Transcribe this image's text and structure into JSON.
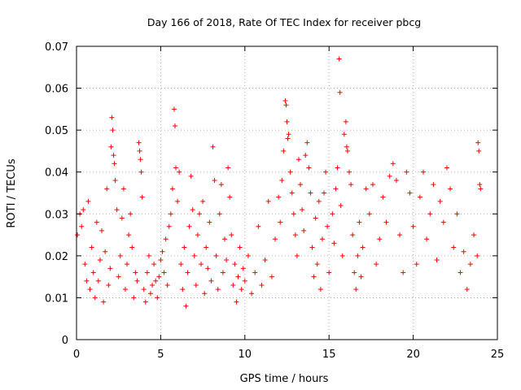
{
  "chart_data": {
    "type": "scatter",
    "title": "Day 166 of 2018, Rate Of TEC Index for receiver pbcg",
    "xlabel": "GPS time / hours",
    "ylabel": "ROTI / TECUs",
    "xlim": [
      0,
      25
    ],
    "ylim": [
      0,
      0.07
    ],
    "x_ticks": [
      0,
      5,
      10,
      15,
      20,
      25
    ],
    "x_tick_labels": [
      "0",
      "5",
      "10",
      "15",
      "20",
      "25"
    ],
    "y_ticks": [
      0,
      0.01,
      0.02,
      0.03,
      0.04,
      0.05,
      0.06,
      0.07
    ],
    "y_tick_labels": [
      "0",
      "0.01",
      "0.02",
      "0.03",
      "0.04",
      "0.05",
      "0.06",
      "0.07"
    ],
    "grid": true,
    "marker": "plus",
    "color": "#ff0000",
    "series": [
      {
        "name": "ROTI",
        "points": [
          [
            0.05,
            0.025
          ],
          [
            0.2,
            0.03
          ],
          [
            0.3,
            0.027
          ],
          [
            0.4,
            0.031
          ],
          [
            0.5,
            0.018
          ],
          [
            0.6,
            0.014
          ],
          [
            0.7,
            0.033
          ],
          [
            0.8,
            0.012
          ],
          [
            0.9,
            0.022
          ],
          [
            1.0,
            0.016
          ],
          [
            1.1,
            0.01
          ],
          [
            1.2,
            0.028
          ],
          [
            1.3,
            0.014
          ],
          [
            1.4,
            0.019
          ],
          [
            1.5,
            0.026
          ],
          [
            1.6,
            0.009
          ],
          [
            1.7,
            0.021
          ],
          [
            1.8,
            0.036
          ],
          [
            1.9,
            0.013
          ],
          [
            2.0,
            0.017
          ],
          [
            2.05,
            0.046
          ],
          [
            2.1,
            0.053
          ],
          [
            2.15,
            0.05
          ],
          [
            2.2,
            0.044
          ],
          [
            2.25,
            0.042
          ],
          [
            2.3,
            0.038
          ],
          [
            2.4,
            0.031
          ],
          [
            2.5,
            0.015
          ],
          [
            2.6,
            0.02
          ],
          [
            2.7,
            0.029
          ],
          [
            2.8,
            0.036
          ],
          [
            2.9,
            0.012
          ],
          [
            3.0,
            0.018
          ],
          [
            3.1,
            0.025
          ],
          [
            3.2,
            0.03
          ],
          [
            3.3,
            0.022
          ],
          [
            3.4,
            0.01
          ],
          [
            3.5,
            0.016
          ],
          [
            3.6,
            0.014
          ],
          [
            3.7,
            0.047
          ],
          [
            3.75,
            0.045
          ],
          [
            3.8,
            0.043
          ],
          [
            3.85,
            0.04
          ],
          [
            3.9,
            0.034
          ],
          [
            4.0,
            0.012
          ],
          [
            4.1,
            0.009
          ],
          [
            4.2,
            0.016
          ],
          [
            4.3,
            0.02
          ],
          [
            4.4,
            0.011
          ],
          [
            4.5,
            0.013
          ],
          [
            4.6,
            0.018
          ],
          [
            4.7,
            0.014
          ],
          [
            4.8,
            0.01
          ],
          [
            4.9,
            0.015
          ],
          [
            5.0,
            0.019
          ],
          [
            5.1,
            0.021
          ],
          [
            5.2,
            0.016
          ],
          [
            5.3,
            0.024
          ],
          [
            5.4,
            0.013
          ],
          [
            5.5,
            0.027
          ],
          [
            5.6,
            0.03
          ],
          [
            5.7,
            0.036
          ],
          [
            5.8,
            0.055
          ],
          [
            5.85,
            0.051
          ],
          [
            5.9,
            0.041
          ],
          [
            6.0,
            0.033
          ],
          [
            6.1,
            0.04
          ],
          [
            6.2,
            0.018
          ],
          [
            6.3,
            0.012
          ],
          [
            6.4,
            0.022
          ],
          [
            6.5,
            0.008
          ],
          [
            6.6,
            0.016
          ],
          [
            6.7,
            0.027
          ],
          [
            6.8,
            0.039
          ],
          [
            6.9,
            0.031
          ],
          [
            7.0,
            0.02
          ],
          [
            7.1,
            0.013
          ],
          [
            7.2,
            0.025
          ],
          [
            7.3,
            0.03
          ],
          [
            7.4,
            0.018
          ],
          [
            7.5,
            0.033
          ],
          [
            7.6,
            0.011
          ],
          [
            7.7,
            0.022
          ],
          [
            7.8,
            0.017
          ],
          [
            7.9,
            0.028
          ],
          [
            8.0,
            0.014
          ],
          [
            8.1,
            0.046
          ],
          [
            8.2,
            0.038
          ],
          [
            8.3,
            0.02
          ],
          [
            8.4,
            0.012
          ],
          [
            8.5,
            0.03
          ],
          [
            8.6,
            0.037
          ],
          [
            8.7,
            0.016
          ],
          [
            8.8,
            0.024
          ],
          [
            8.9,
            0.019
          ],
          [
            9.0,
            0.041
          ],
          [
            9.1,
            0.034
          ],
          [
            9.2,
            0.025
          ],
          [
            9.3,
            0.013
          ],
          [
            9.4,
            0.018
          ],
          [
            9.5,
            0.009
          ],
          [
            9.6,
            0.015
          ],
          [
            9.7,
            0.022
          ],
          [
            9.8,
            0.012
          ],
          [
            9.9,
            0.017
          ],
          [
            10.0,
            0.014
          ],
          [
            10.2,
            0.02
          ],
          [
            10.4,
            0.011
          ],
          [
            10.6,
            0.016
          ],
          [
            10.8,
            0.027
          ],
          [
            11.0,
            0.013
          ],
          [
            11.2,
            0.019
          ],
          [
            11.4,
            0.033
          ],
          [
            11.6,
            0.015
          ],
          [
            11.8,
            0.024
          ],
          [
            12.0,
            0.034
          ],
          [
            12.1,
            0.028
          ],
          [
            12.2,
            0.038
          ],
          [
            12.3,
            0.045
          ],
          [
            12.4,
            0.057
          ],
          [
            12.45,
            0.056
          ],
          [
            12.5,
            0.052
          ],
          [
            12.55,
            0.048
          ],
          [
            12.6,
            0.049
          ],
          [
            12.7,
            0.04
          ],
          [
            12.8,
            0.035
          ],
          [
            12.9,
            0.03
          ],
          [
            13.0,
            0.025
          ],
          [
            13.1,
            0.02
          ],
          [
            13.2,
            0.043
          ],
          [
            13.3,
            0.037
          ],
          [
            13.4,
            0.031
          ],
          [
            13.5,
            0.026
          ],
          [
            13.6,
            0.044
          ],
          [
            13.7,
            0.047
          ],
          [
            13.8,
            0.041
          ],
          [
            13.9,
            0.035
          ],
          [
            14.0,
            0.022
          ],
          [
            14.1,
            0.015
          ],
          [
            14.2,
            0.029
          ],
          [
            14.3,
            0.018
          ],
          [
            14.4,
            0.033
          ],
          [
            14.5,
            0.012
          ],
          [
            14.6,
            0.024
          ],
          [
            14.7,
            0.035
          ],
          [
            14.8,
            0.04
          ],
          [
            14.9,
            0.027
          ],
          [
            15.0,
            0.016
          ],
          [
            15.2,
            0.03
          ],
          [
            15.3,
            0.023
          ],
          [
            15.4,
            0.036
          ],
          [
            15.5,
            0.041
          ],
          [
            15.6,
            0.067
          ],
          [
            15.65,
            0.059
          ],
          [
            15.7,
            0.032
          ],
          [
            15.8,
            0.02
          ],
          [
            15.9,
            0.049
          ],
          [
            16.0,
            0.052
          ],
          [
            16.05,
            0.046
          ],
          [
            16.1,
            0.045
          ],
          [
            16.2,
            0.04
          ],
          [
            16.3,
            0.037
          ],
          [
            16.4,
            0.025
          ],
          [
            16.5,
            0.016
          ],
          [
            16.6,
            0.012
          ],
          [
            16.7,
            0.02
          ],
          [
            16.8,
            0.028
          ],
          [
            16.9,
            0.015
          ],
          [
            17.0,
            0.022
          ],
          [
            17.2,
            0.036
          ],
          [
            17.4,
            0.03
          ],
          [
            17.6,
            0.037
          ],
          [
            17.8,
            0.018
          ],
          [
            18.0,
            0.024
          ],
          [
            18.2,
            0.034
          ],
          [
            18.4,
            0.028
          ],
          [
            18.6,
            0.039
          ],
          [
            18.8,
            0.042
          ],
          [
            19.0,
            0.038
          ],
          [
            19.2,
            0.025
          ],
          [
            19.4,
            0.016
          ],
          [
            19.6,
            0.04
          ],
          [
            19.8,
            0.035
          ],
          [
            20.0,
            0.027
          ],
          [
            20.2,
            0.018
          ],
          [
            20.4,
            0.034
          ],
          [
            20.6,
            0.04
          ],
          [
            20.8,
            0.024
          ],
          [
            21.0,
            0.03
          ],
          [
            21.2,
            0.037
          ],
          [
            21.4,
            0.019
          ],
          [
            21.6,
            0.033
          ],
          [
            21.8,
            0.028
          ],
          [
            22.0,
            0.041
          ],
          [
            22.2,
            0.036
          ],
          [
            22.4,
            0.022
          ],
          [
            22.6,
            0.03
          ],
          [
            22.8,
            0.016
          ],
          [
            23.0,
            0.021
          ],
          [
            23.2,
            0.012
          ],
          [
            23.4,
            0.018
          ],
          [
            23.6,
            0.025
          ],
          [
            23.8,
            0.02
          ],
          [
            23.85,
            0.047
          ],
          [
            23.9,
            0.045
          ],
          [
            23.95,
            0.037
          ],
          [
            24.0,
            0.036
          ]
        ]
      }
    ]
  }
}
